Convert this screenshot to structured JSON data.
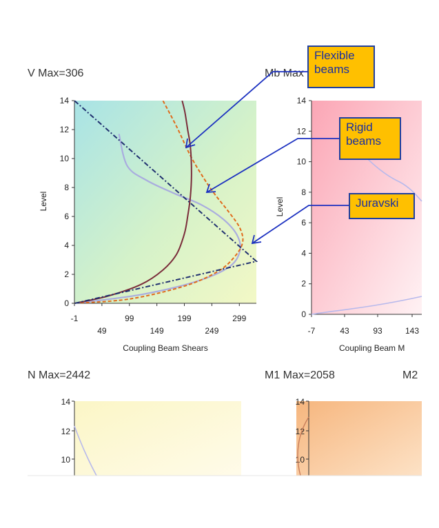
{
  "panels": {
    "v": {
      "title": "V Max=306",
      "xlabel": "Coupling Beam Shears",
      "ylabel": "Level"
    },
    "mb": {
      "title": "Mb Max",
      "xlabel": "Coupling Beam M",
      "ylabel": "Level"
    },
    "n": {
      "title": "N Max=2442"
    },
    "m1": {
      "title": "M1 Max=2058"
    },
    "m2": {
      "title": "M2"
    }
  },
  "callouts": {
    "flexible": "Flexible beams",
    "rigid": "Rigid beams",
    "juravski": "Juravski"
  },
  "colors": {
    "flexible": "#7a2c3a",
    "rigid": "#e06a1b",
    "juravski": "#1f2f6f",
    "light_curve": "#a9acdf",
    "callout_fill": "#ffc000",
    "callout_border": "#1f3f9f"
  },
  "chart_data": [
    {
      "type": "line",
      "ylim": [
        0,
        14
      ],
      "xlim": [
        -1,
        330
      ],
      "yticks": [
        "0",
        "2",
        "4",
        "6",
        "8",
        "10",
        "12",
        "14"
      ],
      "xticks_row1": [
        "-1",
        "99",
        "199",
        "299"
      ],
      "xticks_row2": [
        "49",
        "149",
        "249"
      ],
      "xtick_values_row1": [
        -1,
        99,
        199,
        299
      ],
      "xtick_values_row2": [
        49,
        149,
        249
      ],
      "series": [
        {
          "id": "flexible",
          "style": "solid",
          "x": [
            0,
            60,
            120,
            160,
            185,
            199,
            205,
            210,
            212,
            210,
            205,
            200,
            195
          ],
          "y": [
            0,
            0.5,
            1.3,
            2.3,
            3.4,
            4.8,
            6,
            7.4,
            9,
            10.8,
            12,
            13.2,
            14
          ]
        },
        {
          "id": "rigid",
          "style": "dashed",
          "x": [
            0,
            100,
            200,
            260,
            290,
            305,
            300,
            280,
            255,
            235,
            210,
            185,
            160
          ],
          "y": [
            0,
            0.3,
            1.2,
            2.2,
            3.2,
            4.2,
            5.2,
            6.3,
            7.5,
            8.6,
            10.2,
            12.2,
            14
          ]
        },
        {
          "id": "juravski",
          "style": "dashdot",
          "x": [
            0,
            330,
            -1
          ],
          "y": [
            0,
            2.9,
            14
          ]
        },
        {
          "id": "light_curve",
          "style": "solid",
          "x": [
            0,
            120,
            220,
            280,
            300,
            295,
            270,
            230,
            180,
            130,
            95,
            80
          ],
          "y": [
            0,
            0.6,
            1.5,
            2.5,
            3.6,
            4.7,
            5.8,
            6.8,
            7.6,
            8.5,
            9.5,
            11.7
          ]
        }
      ]
    },
    {
      "type": "line",
      "ylim": [
        0,
        14
      ],
      "yticks": [
        "0",
        "2",
        "4",
        "6",
        "8",
        "10",
        "12",
        "14"
      ],
      "xticks_row1": [
        "-7",
        "93"
      ],
      "xticks_row2": [
        "43",
        "143"
      ],
      "series": [
        {
          "id": "light_curve"
        }
      ]
    },
    {
      "type": "line",
      "yticks": [
        "10",
        "12",
        "14"
      ]
    },
    {
      "type": "line",
      "yticks": [
        "10",
        "12",
        "14"
      ]
    }
  ]
}
